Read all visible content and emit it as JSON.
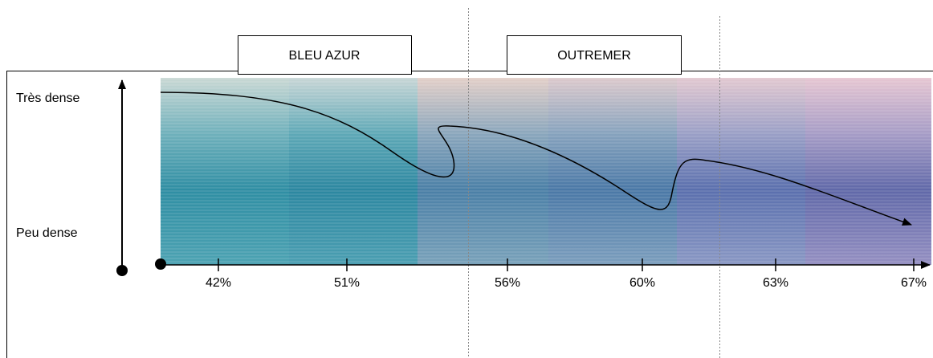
{
  "labels": {
    "box_left": "BLEU AZUR",
    "box_right": "OUTREMER",
    "top": "Très dense",
    "bottom": "Peu dense"
  },
  "ticks": [
    "42%",
    "51%",
    "56%",
    "60%",
    "63%",
    "67%"
  ]
}
